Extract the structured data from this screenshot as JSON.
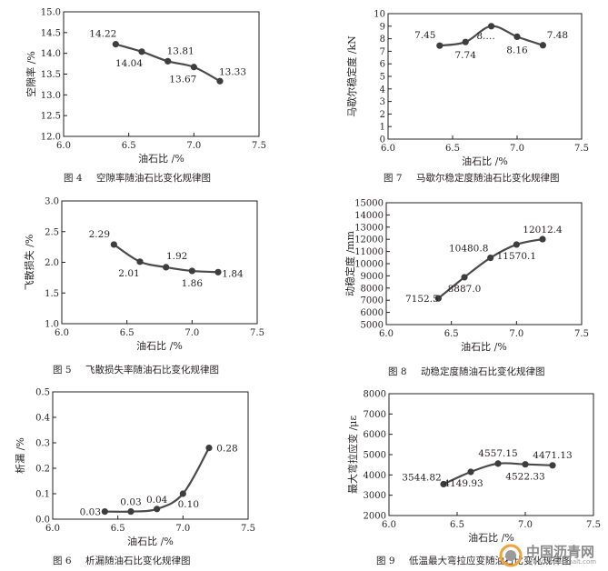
{
  "chart_data": [
    {
      "type": "line",
      "figure_label": "图 4",
      "caption": "空隙率随油石比变化规律图",
      "xlabel": "油石比 /%",
      "ylabel": "空隙率 /%",
      "xlim": [
        6.0,
        7.5
      ],
      "ylim": [
        12.0,
        15.0
      ],
      "xticks": [
        "6.0",
        "6.5",
        "7.0",
        "7.5"
      ],
      "yticks": [
        "12.0",
        "12.5",
        "13.0",
        "13.5",
        "14.0",
        "14.5",
        "15.0"
      ],
      "x": [
        6.4,
        6.6,
        6.8,
        7.0,
        7.2
      ],
      "values": [
        14.22,
        14.04,
        13.81,
        13.67,
        13.33
      ],
      "point_labels": [
        "14.22",
        "14.04",
        "13.81",
        "13.67",
        "13.33"
      ]
    },
    {
      "type": "line",
      "figure_label": "图 7",
      "caption": "马歇尔稳定度随油石比变化规律图",
      "xlabel": "油石比 /%",
      "ylabel": "马歇尔稳定度 /kN",
      "xlim": [
        6.0,
        7.5
      ],
      "ylim": [
        0,
        10
      ],
      "xticks": [
        "6.0",
        "6.5",
        "7.0",
        "7.5"
      ],
      "yticks": [
        "0",
        "1",
        "2",
        "3",
        "4",
        "5",
        "6",
        "7",
        "8",
        "9",
        "10"
      ],
      "x": [
        6.4,
        6.6,
        6.8,
        7.0,
        7.2
      ],
      "values": [
        7.45,
        7.74,
        9.0,
        8.16,
        7.48
      ],
      "point_labels": [
        "7.45",
        "7.74",
        "8.…",
        "8.16",
        "7.48"
      ]
    },
    {
      "type": "line",
      "figure_label": "图 5",
      "caption": "飞散损失率随油石比变化规律图",
      "xlabel": "油石比 /%",
      "ylabel": "飞散损失 /%",
      "xlim": [
        6.0,
        7.5
      ],
      "ylim": [
        1.0,
        3.0
      ],
      "xticks": [
        "6.0",
        "6.5",
        "7.0",
        "7.5"
      ],
      "yticks": [
        "1.0",
        "1.5",
        "2.0",
        "2.5",
        "3.0"
      ],
      "x": [
        6.4,
        6.6,
        6.8,
        7.0,
        7.2
      ],
      "values": [
        2.29,
        2.01,
        1.92,
        1.86,
        1.84
      ],
      "point_labels": [
        "2.29",
        "2.01",
        "1.92",
        "1.86",
        "1.84"
      ]
    },
    {
      "type": "line",
      "figure_label": "图 8",
      "caption": "动稳定度随油石比变化规律图",
      "xlabel": "油石比 /%",
      "ylabel": "动稳定度 /mm",
      "xlim": [
        6.0,
        7.5
      ],
      "ylim": [
        5000,
        15000
      ],
      "xticks": [
        "6.0",
        "6.5",
        "7.0",
        "7.5"
      ],
      "yticks": [
        "5000",
        "6000",
        "7000",
        "8000",
        "9000",
        "10000",
        "11000",
        "12000",
        "13000",
        "14000",
        "15000"
      ],
      "x": [
        6.4,
        6.6,
        6.8,
        7.0,
        7.2
      ],
      "values": [
        7152.5,
        8887.0,
        10480.8,
        11570.1,
        12012.4
      ],
      "point_labels": [
        "7152.5",
        "8887.0",
        "10480.8",
        "11570.1",
        "12012.4"
      ]
    },
    {
      "type": "line",
      "figure_label": "图 6",
      "caption": "析漏随油石比变化规律图",
      "xlabel": "油石比 /%",
      "ylabel": "析漏 /%",
      "xlim": [
        6.0,
        7.5
      ],
      "ylim": [
        0.0,
        0.5
      ],
      "xticks": [
        "6.0",
        "6.5",
        "7.0",
        "7.5"
      ],
      "yticks": [
        "0.0",
        "0.1",
        "0.2",
        "0.3",
        "0.4",
        "0.5"
      ],
      "x": [
        6.4,
        6.6,
        6.8,
        7.0,
        7.2
      ],
      "values": [
        0.03,
        0.03,
        0.04,
        0.1,
        0.28
      ],
      "point_labels": [
        "0.03",
        "0.03",
        "0.04",
        "0.10",
        "0.28"
      ]
    },
    {
      "type": "line",
      "figure_label": "图 9",
      "caption": "低温最大弯拉应变随油石比变化规律图",
      "xlabel": "油石比 /%",
      "ylabel": "最大弯拉应变 /με",
      "xlim": [
        6.0,
        7.5
      ],
      "ylim": [
        2000,
        8000
      ],
      "xticks": [
        "6.0",
        "6.5",
        "7.0",
        "7.5"
      ],
      "yticks": [
        "2000",
        "3000",
        "4000",
        "5000",
        "6000",
        "7000",
        "8000"
      ],
      "x": [
        6.4,
        6.6,
        6.8,
        7.0,
        7.2
      ],
      "values": [
        3544.82,
        4149.93,
        4557.15,
        4522.33,
        4471.13
      ],
      "point_labels": [
        "3544.82",
        "4149.93",
        "4557.15",
        "4522.33",
        "4471.13"
      ]
    }
  ],
  "watermark": {
    "text": "中国沥青网",
    "url": "www.sinoasphalt.com",
    "color": "#8a8a8a"
  },
  "colors": {
    "line": "#4a4a4a",
    "marker": "#3d3d3d",
    "text": "#231f20"
  }
}
